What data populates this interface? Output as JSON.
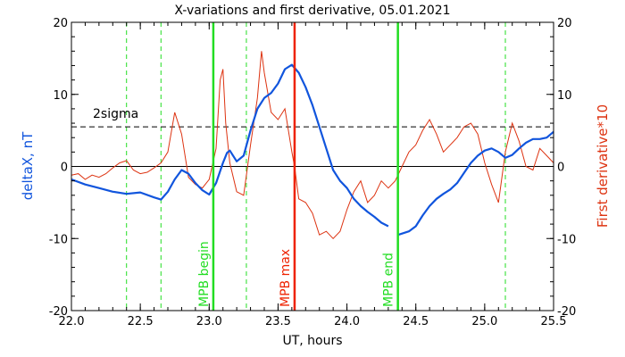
{
  "chart_data": {
    "type": "line",
    "title": "X-variations and first derivative, 05.01.2021",
    "xlabel": "UT, hours",
    "ylabel_left": "deltaX, nT",
    "ylabel_right": "First derivative*10",
    "xlim": [
      22.0,
      25.5
    ],
    "ylim": [
      -20,
      20
    ],
    "x_ticks": [
      "22.0",
      "22.5",
      "23.0",
      "23.5",
      "24.0",
      "24.5",
      "25.0",
      "25.5"
    ],
    "y_ticks_left": [
      "-20",
      "-10",
      "0",
      "10",
      "20"
    ],
    "y_ticks_right": [
      "-20",
      "-10",
      "0",
      "10",
      "20"
    ],
    "threshold": {
      "label": "2sigma",
      "value": 5.5
    },
    "markers": [
      {
        "label": "MPB begin",
        "x": 23.03,
        "color": "#22dd22"
      },
      {
        "label": "MPB max",
        "x": 23.62,
        "color": "#ee2200"
      },
      {
        "label": "MPB end",
        "x": 24.37,
        "color": "#22dd22"
      }
    ],
    "dashed_lines": [
      22.4,
      22.65,
      23.27,
      25.15
    ],
    "series": [
      {
        "name": "deltaX, nT",
        "color": "#1155dd",
        "segments": [
          {
            "x": [
              22.0,
              22.1,
              22.2,
              22.3,
              22.4,
              22.5,
              22.6,
              22.65,
              22.7,
              22.75,
              22.8,
              22.85,
              22.9,
              22.95,
              23.0,
              23.05,
              23.1,
              23.13,
              23.15,
              23.2,
              23.25,
              23.3,
              23.35,
              23.4,
              23.45,
              23.5,
              23.55,
              23.6,
              23.65,
              23.7,
              23.75,
              23.8,
              23.85,
              23.9,
              23.95,
              24.0,
              24.05,
              24.1,
              24.15,
              24.2,
              24.25,
              24.3
            ],
            "y": [
              -1.8,
              -2.5,
              -3.0,
              -3.5,
              -3.8,
              -3.6,
              -4.3,
              -4.6,
              -3.5,
              -1.8,
              -0.5,
              -1.0,
              -2.3,
              -3.3,
              -3.9,
              -2.3,
              0.5,
              1.9,
              2.2,
              0.7,
              1.5,
              5.0,
              8.0,
              9.5,
              10.2,
              11.5,
              13.5,
              14.1,
              13.0,
              11.0,
              8.5,
              5.5,
              2.5,
              -0.5,
              -2.0,
              -3.0,
              -4.5,
              -5.5,
              -6.3,
              -7.0,
              -7.8,
              -8.3
            ]
          },
          {
            "x": [
              24.37,
              24.45,
              24.5,
              24.55,
              24.6,
              24.65,
              24.7,
              24.75,
              24.8,
              24.85,
              24.9,
              24.95,
              25.0,
              25.05,
              25.1,
              25.15,
              25.2,
              25.25,
              25.3,
              25.35,
              25.4,
              25.45,
              25.5
            ],
            "y": [
              -9.5,
              -9.0,
              -8.3,
              -6.8,
              -5.5,
              -4.5,
              -3.8,
              -3.2,
              -2.3,
              -0.9,
              0.5,
              1.5,
              2.2,
              2.5,
              2.0,
              1.2,
              1.6,
              2.5,
              3.3,
              3.8,
              3.8,
              4.0,
              4.8
            ]
          }
        ]
      },
      {
        "name": "First derivative*10",
        "color": "#dd3311",
        "x": [
          22.0,
          22.05,
          22.1,
          22.15,
          22.2,
          22.25,
          22.3,
          22.35,
          22.4,
          22.45,
          22.5,
          22.55,
          22.6,
          22.65,
          22.7,
          22.75,
          22.8,
          22.85,
          22.9,
          22.95,
          23.0,
          23.05,
          23.08,
          23.1,
          23.12,
          23.15,
          23.2,
          23.25,
          23.3,
          23.35,
          23.38,
          23.4,
          23.45,
          23.5,
          23.55,
          23.6,
          23.62,
          23.65,
          23.7,
          23.75,
          23.8,
          23.85,
          23.9,
          23.95,
          24.0,
          24.05,
          24.1,
          24.15,
          24.2,
          24.25,
          24.3,
          24.35,
          24.4,
          24.45,
          24.5,
          24.55,
          24.6,
          24.65,
          24.7,
          24.75,
          24.8,
          24.85,
          24.9,
          24.95,
          25.0,
          25.05,
          25.1,
          25.15,
          25.2,
          25.25,
          25.3,
          25.35,
          25.4,
          25.45,
          25.5
        ],
        "y": [
          -1.2,
          -1.0,
          -1.8,
          -1.2,
          -1.5,
          -1.0,
          -0.2,
          0.5,
          0.8,
          -0.5,
          -1.0,
          -0.8,
          -0.2,
          0.5,
          2.0,
          7.5,
          4.5,
          -1.5,
          -2.5,
          -3.0,
          -1.8,
          2.5,
          12.0,
          13.5,
          6.0,
          0.5,
          -3.5,
          -4.0,
          3.0,
          9.5,
          16.0,
          13.0,
          7.5,
          6.5,
          8.0,
          2.0,
          0.0,
          -4.5,
          -5.0,
          -6.5,
          -9.5,
          -9.0,
          -10.0,
          -9.0,
          -6.0,
          -3.5,
          -2.0,
          -5.0,
          -4.0,
          -2.0,
          -3.0,
          -2.0,
          0.0,
          2.0,
          3.0,
          5.0,
          6.5,
          4.5,
          2.0,
          3.0,
          4.0,
          5.5,
          6.0,
          4.5,
          0.5,
          -2.5,
          -5.0,
          2.0,
          6.0,
          3.5,
          0.0,
          -0.5,
          2.5,
          1.5,
          0.5
        ]
      }
    ]
  }
}
